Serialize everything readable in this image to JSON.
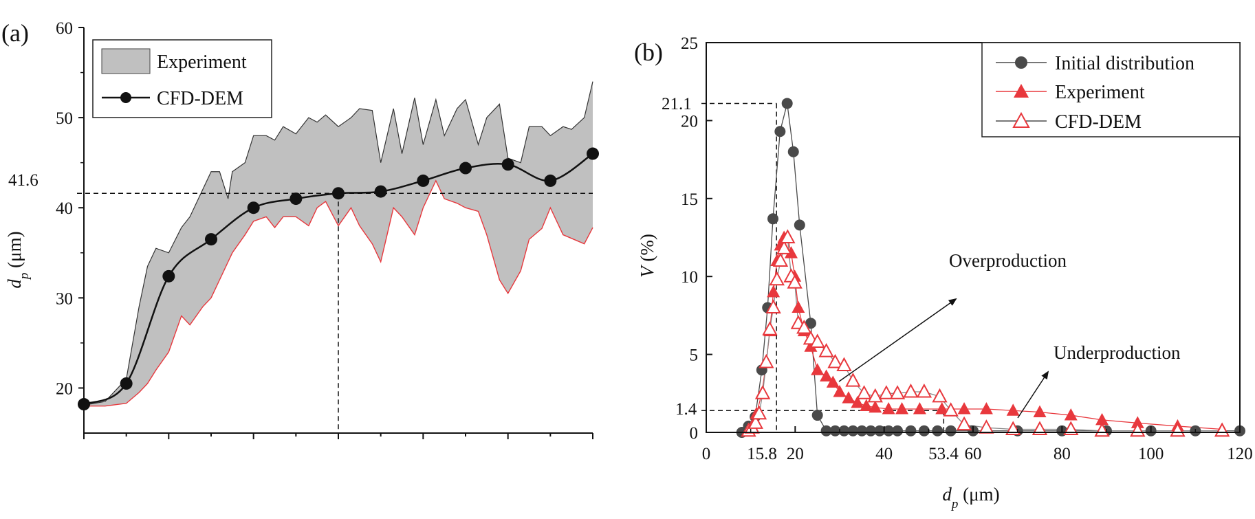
{
  "chart_data": [
    {
      "panel_label": "(a)",
      "type": "line",
      "ylabel_symbol": "d",
      "ylabel_sub": "p",
      "ylabel_unit": " (μm)",
      "ylim": [
        15,
        60
      ],
      "xlim": [
        0,
        12
      ],
      "yticks": [
        "20",
        "30",
        "40",
        "50",
        "60"
      ],
      "x_tick_labels": [],
      "legend": {
        "position": "top-left",
        "entries": [
          "Experiment",
          "CFD-DEM"
        ]
      },
      "reference_value": "41.6",
      "reference_y": 41.6,
      "reference_x": 6,
      "series": [
        {
          "name": "Experiment",
          "kind": "band",
          "x": [
            0,
            0.5,
            1,
            1.3,
            1.5,
            1.7,
            2,
            2.3,
            2.5,
            2.8,
            3,
            3.2,
            3.4,
            3.5,
            3.8,
            4,
            4.3,
            4.5,
            4.7,
            5,
            5.3,
            5.5,
            5.7,
            6,
            6.3,
            6.5,
            6.8,
            7,
            7.3,
            7.5,
            7.8,
            8,
            8.3,
            8.5,
            8.8,
            9,
            9.3,
            9.5,
            9.8,
            10,
            10.3,
            10.5,
            10.8,
            11,
            11.3,
            11.5,
            11.8,
            12
          ],
          "upper": [
            18.1,
            18.5,
            21,
            29,
            33.5,
            35.5,
            35,
            37.8,
            39,
            42,
            44,
            44,
            41,
            44,
            45,
            48,
            48,
            47.5,
            49,
            48.2,
            50,
            49.5,
            50.3,
            49,
            50,
            51,
            50.8,
            45,
            51,
            46,
            52.2,
            47,
            52,
            48,
            51,
            52,
            47,
            50,
            51.5,
            45.5,
            45,
            49,
            49,
            48,
            49,
            48.7,
            50,
            54
          ],
          "lower": [
            18,
            18,
            18.3,
            19.5,
            20.5,
            22,
            24,
            28,
            27,
            29,
            30,
            32,
            34,
            35,
            37,
            38.5,
            39,
            37.8,
            39,
            39,
            38,
            40,
            40.7,
            38,
            40,
            38,
            36,
            34,
            40,
            39,
            37,
            40,
            43,
            41,
            40.5,
            40,
            39.6,
            37,
            32,
            30.5,
            33,
            36.5,
            37.7,
            40,
            37,
            36.6,
            36,
            37.8
          ]
        },
        {
          "name": "CFD-DEM",
          "kind": "line-markers",
          "x": [
            0,
            1,
            2,
            3,
            4,
            5,
            6,
            7,
            8,
            9,
            10,
            11,
            12
          ],
          "values": [
            18.2,
            20.5,
            32.4,
            36.5,
            40,
            41,
            41.6,
            41.8,
            43,
            44.4,
            44.8,
            43,
            46
          ]
        }
      ]
    },
    {
      "panel_label": "(b)",
      "type": "line",
      "xlabel_symbol": "d",
      "xlabel_sub": "p",
      "xlabel_unit": " (μm)",
      "ylabel_symbol": "V",
      "ylabel_unit": " (%)",
      "xlim": [
        0,
        120
      ],
      "ylim": [
        0,
        25
      ],
      "xticks": [
        "0",
        "20",
        "40",
        "60",
        "80",
        "100",
        "120"
      ],
      "xticks_extra": [
        "15.8",
        "53.4"
      ],
      "yticks": [
        "0",
        "5",
        "10",
        "15",
        "20",
        "25"
      ],
      "yticks_extra": [
        "1.4",
        "21.1"
      ],
      "legend": {
        "position": "top-right",
        "entries": [
          "Initial distribution",
          "Experiment",
          "CFD-DEM"
        ]
      },
      "annotations": [
        "Overproduction",
        "Underproduction"
      ],
      "reference_lines": {
        "peak_x": 15.8,
        "peak_y": 21.1,
        "tail_x": 53.4,
        "tail_y": 1.4
      },
      "colors": {
        "initial": "#4a4a4a",
        "experiment": "#e8383d",
        "cfd": "#e8383d"
      },
      "series": [
        {
          "name": "Initial distribution",
          "x": [
            8,
            9.5,
            11,
            12.5,
            13.8,
            15,
            16.6,
            18.2,
            19.6,
            21,
            23.5,
            25,
            27,
            29,
            31,
            33,
            35,
            37,
            39,
            41,
            43,
            46,
            49,
            52,
            55,
            60,
            70,
            80,
            90,
            100,
            110,
            120
          ],
          "values": [
            0,
            0.4,
            1,
            4,
            8,
            13.7,
            19.3,
            21.1,
            18,
            13.3,
            7,
            1.1,
            0.1,
            0.1,
            0.1,
            0.1,
            0.1,
            0.1,
            0.1,
            0.1,
            0.1,
            0.1,
            0.1,
            0.1,
            0.1,
            0.1,
            0.1,
            0.1,
            0.1,
            0.1,
            0.1,
            0.1
          ]
        },
        {
          "name": "Experiment",
          "x": [
            9.5,
            10.3,
            11.3,
            12.5,
            13.5,
            14.3,
            15.1,
            15.9,
            16.7,
            17.5,
            18.3,
            19.1,
            19.9,
            20.7,
            22,
            23.5,
            25,
            27,
            28.5,
            30,
            32,
            34,
            36,
            38,
            41,
            44,
            48,
            53,
            58,
            63,
            69,
            75,
            82,
            89,
            97,
            106,
            116
          ],
          "values": [
            0.1,
            0.4,
            1.2,
            2.5,
            4.5,
            6.5,
            9,
            11,
            12,
            12.5,
            12.5,
            11.5,
            10,
            8,
            6.5,
            5.5,
            4,
            3.6,
            3.2,
            2.6,
            2.2,
            1.9,
            1.7,
            1.6,
            1.5,
            1.5,
            1.5,
            1.5,
            1.5,
            1.5,
            1.4,
            1.3,
            1.1,
            0.8,
            0.6,
            0.4,
            0.2
          ]
        },
        {
          "name": "CFD-DEM",
          "x": [
            9.5,
            10.3,
            11.1,
            11.9,
            12.7,
            13.5,
            14.3,
            15.1,
            15.9,
            16.7,
            17.5,
            18.3,
            19.1,
            19.9,
            20.7,
            22,
            23.5,
            25,
            27,
            29,
            31,
            33,
            35.5,
            38,
            40.5,
            43,
            46,
            49,
            52.5,
            55,
            58,
            63,
            69,
            75,
            82,
            89,
            97,
            106,
            116
          ],
          "values": [
            0.1,
            0.3,
            0.6,
            1.2,
            2.5,
            4.5,
            6.6,
            8,
            9.8,
            11,
            11.8,
            12.5,
            10,
            9.6,
            7,
            6.7,
            6,
            5.8,
            5.2,
            4.5,
            4.3,
            3.3,
            2.5,
            2.3,
            2.5,
            2.5,
            2.6,
            2.6,
            2.3,
            1.4,
            0.5,
            0.3,
            0.2,
            0.2,
            0.2,
            0.1,
            0.1,
            0.1,
            0.1
          ]
        }
      ]
    }
  ]
}
